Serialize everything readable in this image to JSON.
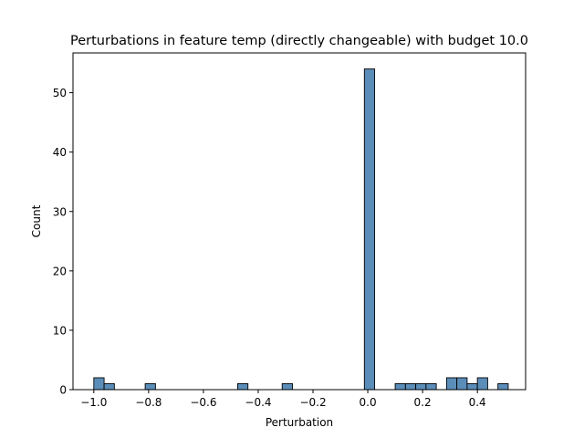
{
  "chart_data": {
    "type": "bar",
    "title": "Perturbations in feature temp (directly changeable) with budget 10.0",
    "xlabel": "Perturbation",
    "ylabel": "Count",
    "xlim": [
      -1.076,
      0.576
    ],
    "ylim": [
      0,
      56.7
    ],
    "x_ticks": [
      -1.0,
      -0.8,
      -0.6,
      -0.4,
      -0.2,
      0.0,
      0.2,
      0.4
    ],
    "x_tick_labels": [
      "−1.0",
      "−0.8",
      "−0.6",
      "−0.4",
      "−0.2",
      "0.0",
      "0.2",
      "0.4"
    ],
    "y_ticks": [
      0,
      10,
      20,
      30,
      40,
      50
    ],
    "y_tick_labels": [
      "0",
      "10",
      "20",
      "30",
      "40",
      "50"
    ],
    "bin_width": 0.0375,
    "bins": [
      {
        "start": -1.0,
        "count": 2
      },
      {
        "start": -0.9625,
        "count": 1
      },
      {
        "start": -0.8125,
        "count": 1
      },
      {
        "start": -0.475,
        "count": 1
      },
      {
        "start": -0.3125,
        "count": 1
      },
      {
        "start": -0.0125,
        "count": 54
      },
      {
        "start": 0.1,
        "count": 1
      },
      {
        "start": 0.1375,
        "count": 1
      },
      {
        "start": 0.175,
        "count": 1
      },
      {
        "start": 0.2125,
        "count": 1
      },
      {
        "start": 0.2875,
        "count": 2
      },
      {
        "start": 0.325,
        "count": 2
      },
      {
        "start": 0.3625,
        "count": 1
      },
      {
        "start": 0.4,
        "count": 2
      },
      {
        "start": 0.475,
        "count": 1
      }
    ],
    "bar_color": "#5b8db9",
    "bar_edge_color": "#000000",
    "grid": false,
    "legend": "none"
  }
}
